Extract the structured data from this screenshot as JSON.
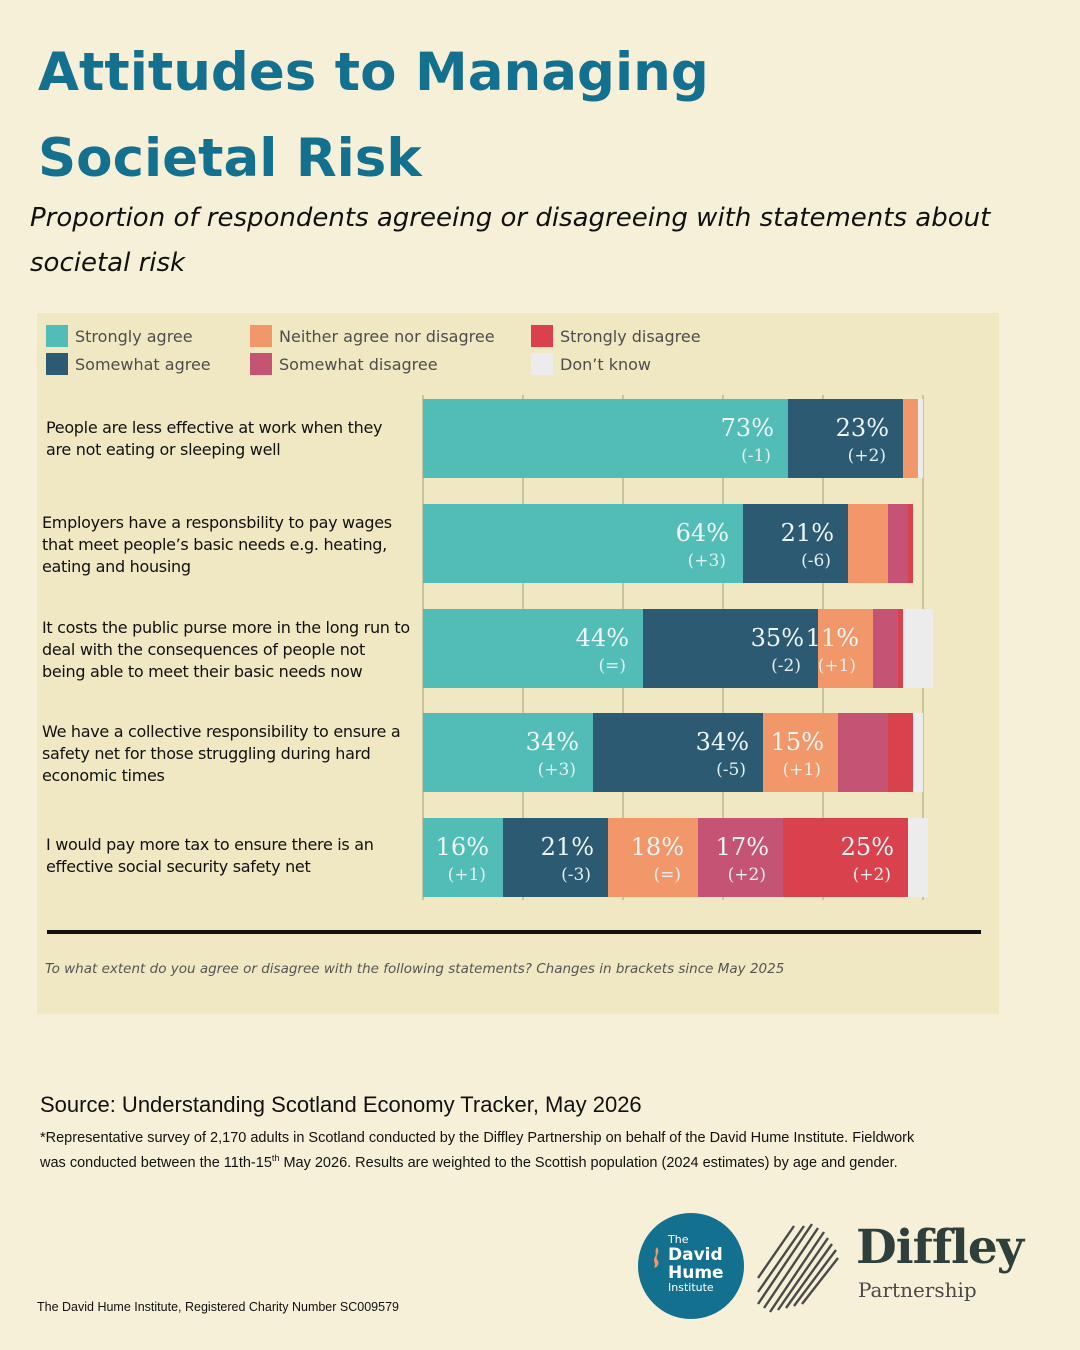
{
  "title": "Attitudes to Managing Societal Risk",
  "subtitle": "Proportion of respondents agreeing or disagreeing with statements about societal risk",
  "colors": {
    "strongly_agree": "#52bdb6",
    "somewhat_agree": "#2c5a73",
    "neither": "#f2976a",
    "somewhat_disagree": "#c55474",
    "strongly_disagree": "#d9414d",
    "dont_know": "#ececec",
    "grid": "#bcb794"
  },
  "legend": [
    {
      "key": "strongly_agree",
      "label": "Strongly agree"
    },
    {
      "key": "somewhat_agree",
      "label": "Somewhat agree"
    },
    {
      "key": "neither",
      "label": "Neither agree nor disagree"
    },
    {
      "key": "somewhat_disagree",
      "label": "Somewhat disagree"
    },
    {
      "key": "strongly_disagree",
      "label": "Strongly disagree"
    },
    {
      "key": "dont_know",
      "label": "Don’t know"
    }
  ],
  "chart_data": {
    "type": "bar",
    "orientation": "horizontal",
    "stacked": true,
    "xlim": [
      0,
      100
    ],
    "grid": true,
    "legend_position": "top",
    "categories": [
      "People are less effective at work when they are not eating or sleeping well",
      "Employers have a responsbility to pay wages that meet people’s basic needs e.g. heating, eating and housing",
      "It costs the public purse more in the long run to deal with the consequences of people not being able to meet their basic needs now",
      "We have a collective responsibility to ensure a safety net for those struggling during hard economic times",
      "I would pay more tax to ensure there is an effective social security safety net"
    ],
    "series": [
      {
        "name": "Strongly agree",
        "key": "strongly_agree",
        "values": [
          73,
          64,
          44,
          34,
          16
        ],
        "labels": [
          "73%",
          "64%",
          "44%",
          "34%",
          "16%"
        ],
        "changes": [
          "(-1)",
          "(+3)",
          "(=)",
          "(+3)",
          "(+1)"
        ]
      },
      {
        "name": "Somewhat agree",
        "key": "somewhat_agree",
        "values": [
          23,
          21,
          35,
          34,
          21
        ],
        "labels": [
          "23%",
          "21%",
          "35%",
          "34%",
          "21%"
        ],
        "changes": [
          "(+2)",
          "(-6)",
          "(-2)",
          "(-5)",
          "(-3)"
        ]
      },
      {
        "name": "Neither agree nor disagree",
        "key": "neither",
        "values": [
          3,
          8,
          11,
          15,
          18
        ],
        "labels": [
          "",
          "",
          "11%",
          "15%",
          "18%"
        ],
        "changes": [
          "",
          "",
          "(+1)",
          "(+1)",
          "(=)"
        ]
      },
      {
        "name": "Somewhat disagree",
        "key": "somewhat_disagree",
        "values": [
          0,
          4,
          5,
          10,
          17
        ],
        "labels": [
          "",
          "",
          "",
          "",
          "17%"
        ],
        "changes": [
          "",
          "",
          "",
          "",
          "(+2)"
        ]
      },
      {
        "name": "Strongly disagree",
        "key": "strongly_disagree",
        "values": [
          0,
          1,
          1,
          5,
          25
        ],
        "labels": [
          "",
          "",
          "",
          "",
          "25%"
        ],
        "changes": [
          "",
          "",
          "",
          "",
          "(+2)"
        ]
      },
      {
        "name": "Don’t know",
        "key": "dont_know",
        "values": [
          1,
          0,
          6,
          2,
          4
        ],
        "labels": [
          "",
          "",
          "",
          "",
          ""
        ],
        "changes": [
          "",
          "",
          "",
          "",
          ""
        ]
      }
    ]
  },
  "row_labels": [
    [
      "People are less effective at work when they",
      "are not eating or sleeping well"
    ],
    [
      "Employers have a responsbility to pay wages",
      "that meet people’s basic needs e.g. heating,",
      "eating and housing"
    ],
    [
      "It costs the public purse more in the long run to",
      "deal with the consequences of people not",
      "being able to meet their basic needs now"
    ],
    [
      "We have a collective responsibility to ensure a",
      "safety net for those struggling during hard",
      "economic times"
    ],
    [
      "I would pay more tax to ensure there is an",
      "effective social security safety net"
    ]
  ],
  "chart_note": "To what extent do you agree or disagree with the following statements? Changes in brackets since May 2025",
  "source": "Source: Understanding Scotland Economy Tracker, May 2026",
  "method_note": {
    "part1": "*Representative survey of 2,170 adults in Scotland conducted by the Diffley Partnership on behalf of the David Hume Institute. Fieldwork was conducted between the 11th-15",
    "sup": "th",
    "part2": " May 2026. Results are weighted to the Scottish population (2024 estimates) by age and gender."
  },
  "charity": "The David Hume Institute, Registered Charity Number SC009579",
  "logos": {
    "dhi": {
      "the": "The",
      "line1": "David",
      "line2": "Hume",
      "line3": "Institute"
    },
    "diffley": {
      "name": "Diffley",
      "sub": "Partnership"
    }
  }
}
